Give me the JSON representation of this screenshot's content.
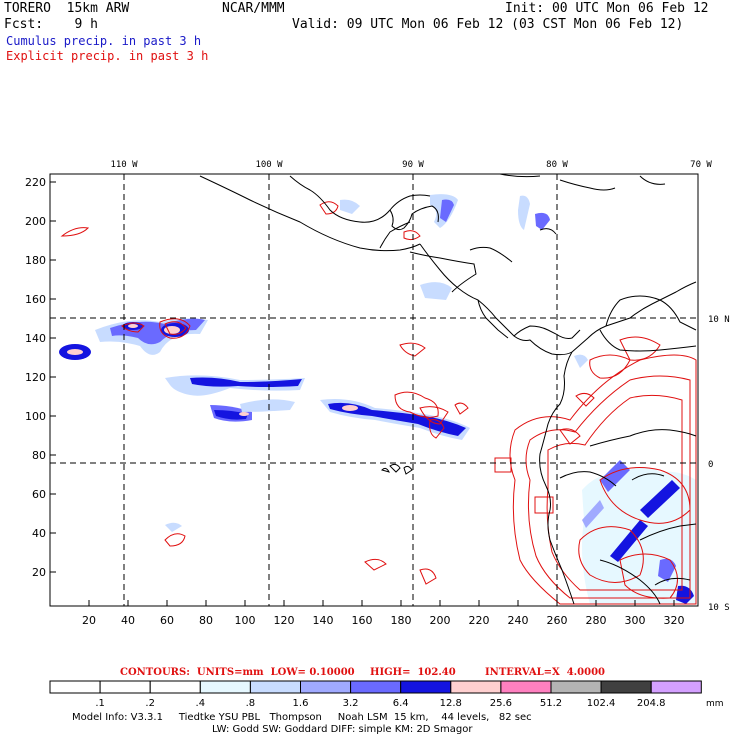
{
  "header": {
    "model": "TORERO  15km ARW",
    "org": "NCAR/MMM",
    "init": "Init: 00 UTC Mon 06 Feb 12",
    "fcst": "Fcst:    9 h",
    "valid": "Valid: 09 UTC Mon 06 Feb 12 (03 CST Mon 06 Feb 12)",
    "field1": "Cumulus precip. in past 3 h",
    "field2": "Explicit precip. in past 3 h"
  },
  "map": {
    "lon_labels": [
      "110 W",
      "100 W",
      "90 W",
      "80 W",
      "70 W"
    ],
    "lat_labels": [
      "10 N",
      "0",
      "10 S"
    ],
    "y_ticks": [
      "220",
      "200",
      "180",
      "160",
      "140",
      "120",
      "100",
      "80",
      "60",
      "40",
      "20"
    ],
    "x_ticks": [
      "20",
      "40",
      "60",
      "80",
      "100",
      "120",
      "140",
      "160",
      "180",
      "200",
      "220",
      "240",
      "260",
      "280",
      "300",
      "320"
    ],
    "colors": {
      "cumulus_light": "#c8dcff",
      "cumulus_mid": "#6a6aff",
      "cumulus_dark": "#1414e0",
      "explicit": "#e01010",
      "coast": "#000000"
    }
  },
  "contours_line": {
    "label": "CONTOURS:  UNITS=mm  LOW= 0.10000",
    "high": "HIGH=  102.40",
    "interval": "INTERVAL=X  4.0000"
  },
  "colorbar": {
    "values": [
      ".1",
      ".2",
      ".4",
      ".8",
      "1.6",
      "3.2",
      "6.4",
      "12.8",
      "25.6",
      "51.2",
      "102.4",
      "204.8"
    ],
    "unit": "mm",
    "colors": [
      "#ffffff",
      "#ffffff",
      "#ffffff",
      "#e6f8ff",
      "#c8dcff",
      "#a0aaff",
      "#6a6aff",
      "#1414e0",
      "#ffd0d0",
      "#ff80c0",
      "#b4b4b4",
      "#404040",
      "#d4a0ff"
    ]
  },
  "footer": {
    "line1": "Model Info: V3.3.1     Tiedtke YSU PBL   Thompson     Noah LSM  15 km,    44 levels,   82 sec",
    "line2": "LW: Godd SW: Goddard DIFF: simple KM: 2D Smagor"
  }
}
